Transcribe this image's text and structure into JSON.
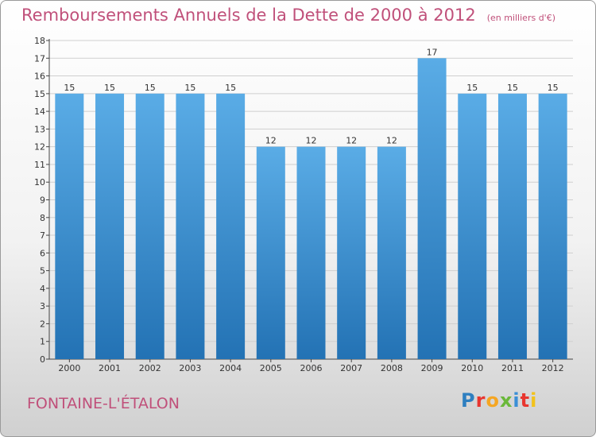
{
  "header": {
    "title": "Remboursements Annuels de la Dette de 2000 à 2012",
    "unit": "(en milliers d'€)"
  },
  "footer": {
    "city": "FONTAINE-L'ÉTALON",
    "logo": {
      "letters": [
        "P",
        "r",
        "o",
        "x",
        "i",
        "t",
        "i"
      ],
      "colors": [
        "#2e7fc0",
        "#e8362f",
        "#f5a623",
        "#6ab83a",
        "#3b8fd6",
        "#e8362f",
        "#f2c21b"
      ]
    }
  },
  "colors": {
    "title": "#c0507a",
    "bar_top": "#5aace6",
    "bar_bottom": "#2372b4",
    "grid": "#cfcfcf"
  },
  "chart_data": {
    "type": "bar",
    "title": "Remboursements Annuels de la Dette de 2000 à 2012",
    "xlabel": "",
    "ylabel": "",
    "categories": [
      "2000",
      "2001",
      "2002",
      "2003",
      "2004",
      "2005",
      "2006",
      "2007",
      "2008",
      "2009",
      "2010",
      "2011",
      "2012"
    ],
    "values": [
      15,
      15,
      15,
      15,
      15,
      12,
      12,
      12,
      12,
      17,
      15,
      15,
      15
    ],
    "ylim": [
      0,
      18
    ],
    "yticks": [
      0,
      1,
      2,
      3,
      4,
      5,
      6,
      7,
      8,
      9,
      10,
      11,
      12,
      13,
      14,
      15,
      16,
      17,
      18
    ],
    "grid": true
  }
}
